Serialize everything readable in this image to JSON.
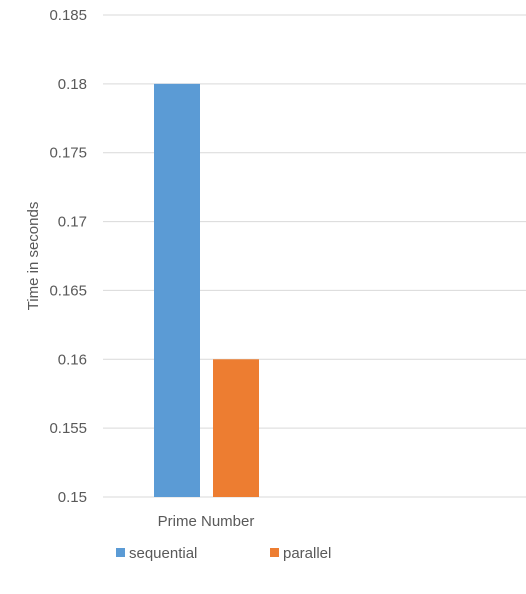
{
  "chart_data": {
    "type": "bar",
    "categories": [
      "Prime Number"
    ],
    "series": [
      {
        "name": "sequential",
        "values": [
          0.18
        ],
        "color": "#5b9bd5"
      },
      {
        "name": "parallel",
        "values": [
          0.16
        ],
        "color": "#ed7d31"
      }
    ],
    "xlabel": "",
    "ylabel": "Time in seconds",
    "ylim": [
      0.15,
      0.185
    ],
    "yticks": [
      "0.15",
      "0.155",
      "0.16",
      "0.165",
      "0.17",
      "0.175",
      "0.18",
      "0.185"
    ],
    "grid": true,
    "legend_position": "bottom"
  }
}
